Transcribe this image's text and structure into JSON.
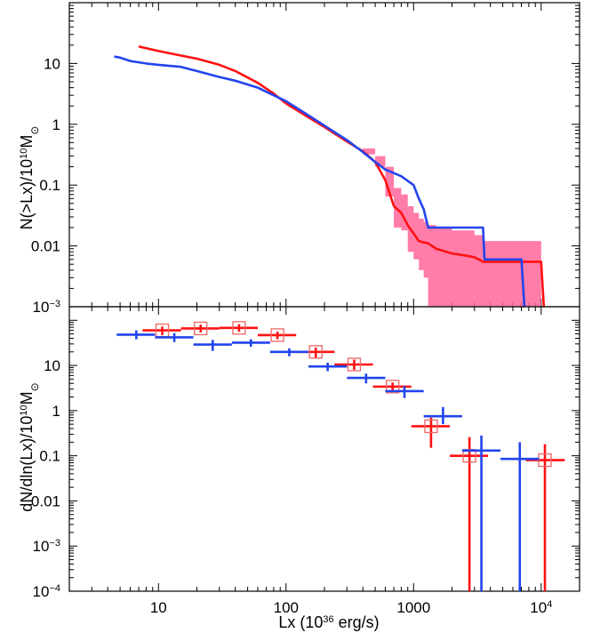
{
  "figure": {
    "xlabel_main": "Lx (10",
    "xlabel_sup": "36",
    "xlabel_end": " erg/s)"
  },
  "chart_data": [
    {
      "type": "line",
      "panel": "top",
      "ylabel_main": "N(>Lx)/10",
      "ylabel_sup": "10",
      "ylabel_end": "M",
      "ylabel_sub": "⊙",
      "xscale": "log",
      "yscale": "log",
      "xlim": [
        2,
        20000
      ],
      "ylim": [
        0.001,
        100
      ],
      "x_tick_labels": [
        {
          "main": "10",
          "sup": ""
        },
        {
          "main": "100",
          "sup": ""
        },
        {
          "main": "1000",
          "sup": ""
        },
        {
          "main": "10",
          "sup": "4"
        }
      ],
      "y_tick_labels": [
        {
          "main": "10",
          "sup": "−3"
        },
        {
          "main": "0.01",
          "sup": ""
        },
        {
          "main": "0.1",
          "sup": ""
        },
        {
          "main": "1",
          "sup": ""
        },
        {
          "main": "10",
          "sup": ""
        }
      ],
      "series": [
        {
          "color": "#ff1111",
          "points": [
            [
              7,
              19
            ],
            [
              10,
              16
            ],
            [
              15,
              13.5
            ],
            [
              20,
              12
            ],
            [
              30,
              9.5
            ],
            [
              40,
              7.5
            ],
            [
              60,
              4.8
            ],
            [
              80,
              3.2
            ],
            [
              100,
              2.2
            ],
            [
              150,
              1.3
            ],
            [
              200,
              0.9
            ],
            [
              300,
              0.52
            ],
            [
              400,
              0.36
            ],
            [
              500,
              0.24
            ],
            [
              600,
              0.12
            ],
            [
              700,
              0.045
            ],
            [
              800,
              0.035
            ],
            [
              900,
              0.022
            ],
            [
              1000,
              0.016
            ],
            [
              1100,
              0.012
            ],
            [
              1300,
              0.011
            ],
            [
              1500,
              0.009
            ],
            [
              2000,
              0.0075
            ],
            [
              2500,
              0.007
            ],
            [
              3000,
              0.0065
            ],
            [
              3500,
              0.0055
            ],
            [
              8000,
              0.0055
            ],
            [
              10000,
              0.0055
            ],
            [
              10500,
              0.001
            ]
          ]
        },
        {
          "color": "#2244ee",
          "points": [
            [
              4.5,
              13
            ],
            [
              5,
              12.5
            ],
            [
              6,
              11
            ],
            [
              8,
              10
            ],
            [
              10,
              9.5
            ],
            [
              15,
              8.8
            ],
            [
              20,
              7.5
            ],
            [
              30,
              6
            ],
            [
              40,
              5.2
            ],
            [
              60,
              4
            ],
            [
              80,
              3
            ],
            [
              100,
              2.4
            ],
            [
              150,
              1.4
            ],
            [
              200,
              0.95
            ],
            [
              300,
              0.55
            ],
            [
              400,
              0.35
            ],
            [
              500,
              0.24
            ],
            [
              600,
              0.18
            ],
            [
              800,
              0.14
            ],
            [
              1000,
              0.1
            ],
            [
              1100,
              0.06
            ],
            [
              1200,
              0.04
            ],
            [
              1300,
              0.02
            ],
            [
              2000,
              0.02
            ],
            [
              3500,
              0.02
            ],
            [
              3600,
              0.006
            ],
            [
              7000,
              0.006
            ],
            [
              7400,
              0.001
            ]
          ]
        }
      ],
      "band": {
        "color": "#ff6699",
        "points": [
          [
            400,
            0.4,
            0.32
          ],
          [
            500,
            0.3,
            0.2
          ],
          [
            600,
            0.2,
            0.065
          ],
          [
            700,
            0.09,
            0.02
          ],
          [
            800,
            0.07,
            0.018
          ],
          [
            900,
            0.045,
            0.008
          ],
          [
            1000,
            0.035,
            0.006
          ],
          [
            1100,
            0.028,
            0.004
          ],
          [
            1200,
            0.025,
            0.003
          ],
          [
            1300,
            0.022,
            0.001
          ],
          [
            1500,
            0.02,
            0.001
          ],
          [
            2000,
            0.018,
            0.001
          ],
          [
            3000,
            0.015,
            0.001
          ],
          [
            3500,
            0.012,
            0.001
          ],
          [
            10000,
            0.012,
            0.001
          ]
        ]
      }
    },
    {
      "type": "scatter",
      "panel": "bottom",
      "ylabel_main": "dN/dln(Lx)/10",
      "ylabel_sup": "10",
      "ylabel_end": "M",
      "ylabel_sub": "⊙",
      "xscale": "log",
      "yscale": "log",
      "xlim": [
        2,
        20000
      ],
      "ylim": [
        1e-05,
        20
      ],
      "x_tick_labels": [
        {
          "main": "10",
          "sup": ""
        },
        {
          "main": "100",
          "sup": ""
        },
        {
          "main": "1000",
          "sup": ""
        },
        {
          "main": "10",
          "sup": "4"
        }
      ],
      "y_tick_labels": [
        {
          "main": "10",
          "sup": "−4"
        },
        {
          "main": "10",
          "sup": "−3"
        },
        {
          "main": "0.01",
          "sup": ""
        },
        {
          "main": "0.1",
          "sup": ""
        },
        {
          "main": "1",
          "sup": ""
        },
        {
          "main": "10",
          "sup": ""
        }
      ],
      "series": [
        {
          "color": "#ff1111",
          "marker": "open-square",
          "points": [
            {
              "x": 10.7,
              "y": 6.0,
              "xlo": 7.5,
              "xhi": 15,
              "ylo": 4.7,
              "yhi": 7.3
            },
            {
              "x": 21.4,
              "y": 6.6,
              "xlo": 15,
              "xhi": 30,
              "ylo": 5.4,
              "yhi": 8.0
            },
            {
              "x": 42.8,
              "y": 6.8,
              "xlo": 30,
              "xhi": 60,
              "ylo": 5.6,
              "yhi": 8.2
            },
            {
              "x": 85.6,
              "y": 4.7,
              "xlo": 60,
              "xhi": 120,
              "ylo": 3.8,
              "yhi": 5.6
            },
            {
              "x": 171,
              "y": 2.0,
              "xlo": 120,
              "xhi": 240,
              "ylo": 1.5,
              "yhi": 2.5
            },
            {
              "x": 342,
              "y": 1.05,
              "xlo": 240,
              "xhi": 480,
              "ylo": 0.8,
              "yhi": 1.35
            },
            {
              "x": 684,
              "y": 0.34,
              "xlo": 480,
              "xhi": 960,
              "ylo": 0.26,
              "yhi": 0.42
            },
            {
              "x": 1370,
              "y": 0.045,
              "xlo": 960,
              "xhi": 1920,
              "ylo": 0.015,
              "yhi": 0.07
            },
            {
              "x": 2740,
              "y": 0.01,
              "xlo": 1920,
              "xhi": 3840,
              "ylo": 1e-05,
              "yhi": 0.026
            },
            {
              "x": 10700,
              "y": 0.008,
              "xlo": 7600,
              "xhi": 15300,
              "ylo": 1e-05,
              "yhi": 0.018
            }
          ]
        },
        {
          "color": "#2244ee",
          "marker": "none",
          "points": [
            {
              "x": 6.7,
              "y": 4.8,
              "xlo": 4.7,
              "xhi": 9.4,
              "ylo": 3.8,
              "yhi": 6.0
            },
            {
              "x": 13.3,
              "y": 4.2,
              "xlo": 9.4,
              "xhi": 18.8,
              "ylo": 3.3,
              "yhi": 5.2
            },
            {
              "x": 26.6,
              "y": 2.9,
              "xlo": 18.8,
              "xhi": 37.6,
              "ylo": 2.1,
              "yhi": 3.7
            },
            {
              "x": 53,
              "y": 3.2,
              "xlo": 37.6,
              "xhi": 75,
              "ylo": 2.6,
              "yhi": 3.8
            },
            {
              "x": 106,
              "y": 2.0,
              "xlo": 75,
              "xhi": 150,
              "ylo": 1.6,
              "yhi": 2.4
            },
            {
              "x": 212,
              "y": 0.95,
              "xlo": 150,
              "xhi": 300,
              "ylo": 0.75,
              "yhi": 1.15
            },
            {
              "x": 424,
              "y": 0.53,
              "xlo": 300,
              "xhi": 600,
              "ylo": 0.4,
              "yhi": 0.66
            },
            {
              "x": 848,
              "y": 0.27,
              "xlo": 600,
              "xhi": 1200,
              "ylo": 0.19,
              "yhi": 0.35
            },
            {
              "x": 1700,
              "y": 0.075,
              "xlo": 1200,
              "xhi": 2400,
              "ylo": 0.05,
              "yhi": 0.12
            },
            {
              "x": 3400,
              "y": 0.013,
              "xlo": 2400,
              "xhi": 4800,
              "ylo": 1e-05,
              "yhi": 0.028
            },
            {
              "x": 6800,
              "y": 0.0085,
              "xlo": 4800,
              "xhi": 9600,
              "ylo": 1e-05,
              "yhi": 0.02
            }
          ]
        }
      ]
    }
  ]
}
